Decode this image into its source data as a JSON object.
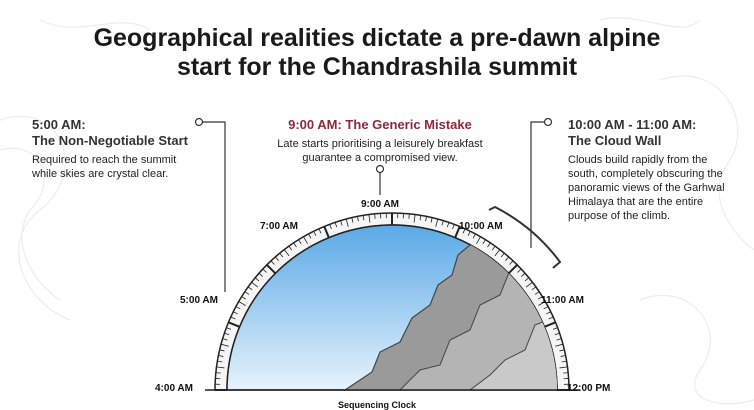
{
  "title": [
    "Geographical realities dictate a pre-dawn alpine",
    "start for the Chandrashila summit"
  ],
  "callouts": [
    {
      "time": "5:00 AM:",
      "heading": "The Non-Negotiable Start",
      "text": "Required to reach the summit while skies are crystal clear."
    },
    {
      "heading": "9:00 AM: The Generic Mistake",
      "text": "Late starts prioritising a leisurely breakfast guarantee a compromised view."
    },
    {
      "time": "10:00 AM - 11:00 AM:",
      "heading": "The Cloud Wall",
      "text": "Clouds build rapidly from the south, completely obscuring the panoramic views of the Garhwal Himalaya that are the entire purpose of the climb."
    }
  ],
  "clock": {
    "labels": [
      "4:00 AM",
      "5:00 AM",
      "7:00 AM",
      "9:00 AM",
      "10:00 AM",
      "11:00 AM",
      "12:00 PM"
    ],
    "caption": "Sequencing Clock"
  }
}
